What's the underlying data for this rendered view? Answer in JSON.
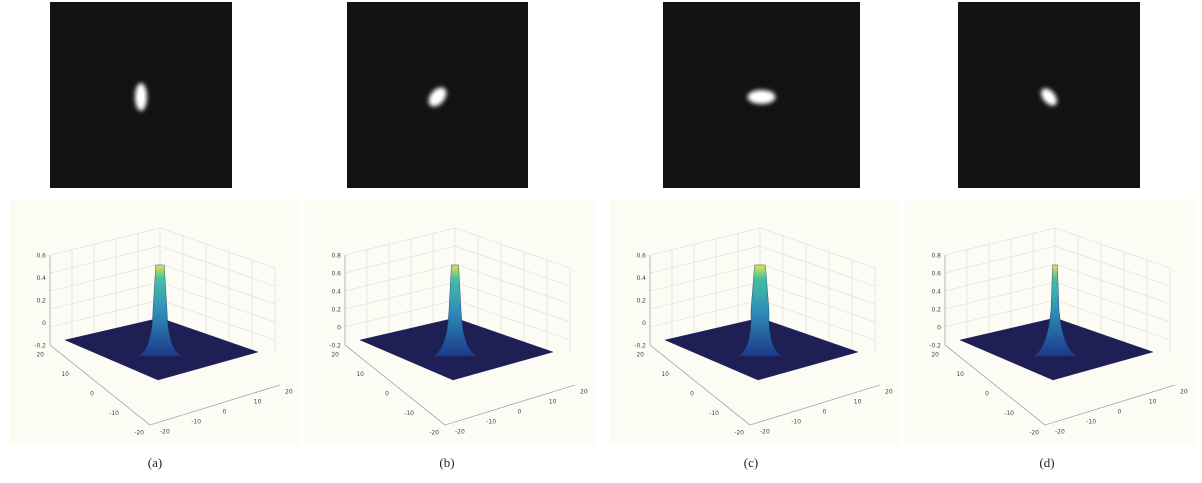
{
  "panels": [
    {
      "caption": "(a)",
      "zticks": [
        "0.6",
        "0.4",
        "0.2",
        "0",
        "-0.2"
      ],
      "yticks": [
        "20",
        "10",
        "0",
        "-10",
        "-20"
      ],
      "xticks": [
        "-20",
        "-10",
        "0",
        "10",
        "20"
      ]
    },
    {
      "caption": "(b)",
      "zticks": [
        "0.8",
        "0.6",
        "0.4",
        "0.2",
        "0",
        "-0.2"
      ],
      "yticks": [
        "20",
        "10",
        "0",
        "-10",
        "-20"
      ],
      "xticks": [
        "-20",
        "-10",
        "0",
        "10",
        "20"
      ]
    },
    {
      "caption": "(c)",
      "zticks": [
        "0.6",
        "0.4",
        "0.2",
        "0",
        "-0.2"
      ],
      "yticks": [
        "20",
        "10",
        "0",
        "-10",
        "-20"
      ],
      "xticks": [
        "-20",
        "-10",
        "0",
        "10",
        "20"
      ]
    },
    {
      "caption": "(d)",
      "zticks": [
        "0.8",
        "0.6",
        "0.4",
        "0.2",
        "0",
        "-0.2"
      ],
      "yticks": [
        "20",
        "10",
        "0",
        "-10",
        "-20"
      ],
      "xticks": [
        "-20",
        "-10",
        "0",
        "10",
        "20"
      ]
    }
  ]
}
